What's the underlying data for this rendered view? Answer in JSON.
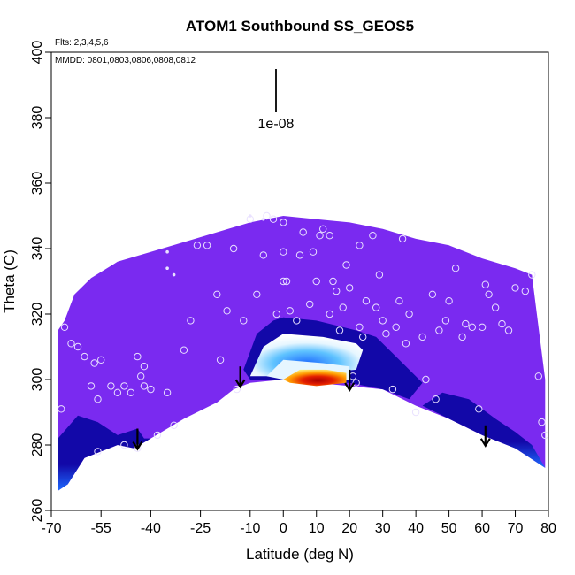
{
  "chart_data": {
    "type": "heatmap",
    "title": "ATOM1 Southbound SS_GEOS5",
    "xlabel": "Latitude (deg N)",
    "ylabel": "Theta (C)",
    "xlim": [
      -70,
      80
    ],
    "ylim": [
      260,
      400
    ],
    "x_ticks": [
      -70,
      -55,
      -40,
      -25,
      -10,
      0,
      10,
      20,
      30,
      40,
      50,
      60,
      70,
      80
    ],
    "y_ticks": [
      260,
      280,
      300,
      320,
      340,
      360,
      380,
      400
    ],
    "flights_note": "Flts: 2,3,4,5,6",
    "dates_note": "MMDD: 0801,0803,0806,0808,0812",
    "scale_bar_label": "1e-08",
    "background_color": "#7A2AF0",
    "colormap": [
      "#1208A8",
      "#1E6BFF",
      "#5FC3FF",
      "#E6F6FF",
      "#FFFFFF",
      "#FFF27A",
      "#FF9A00",
      "#E51F00",
      "#A80000"
    ],
    "domain_boundary": {
      "upper": [
        [
          -68,
          315
        ],
        [
          -66,
          318
        ],
        [
          -63,
          326
        ],
        [
          -58,
          331
        ],
        [
          -50,
          336
        ],
        [
          -40,
          339
        ],
        [
          -30,
          342
        ],
        [
          -20,
          345
        ],
        [
          -10,
          348
        ],
        [
          0,
          350
        ],
        [
          10,
          349
        ],
        [
          20,
          348
        ],
        [
          30,
          346
        ],
        [
          40,
          343
        ],
        [
          50,
          341
        ],
        [
          60,
          337
        ],
        [
          70,
          334
        ],
        [
          75,
          332
        ],
        [
          79,
          300
        ]
      ],
      "lower": [
        [
          -68,
          266
        ],
        [
          -65,
          268
        ],
        [
          -60,
          276
        ],
        [
          -55,
          278
        ],
        [
          -50,
          280
        ],
        [
          -45,
          279
        ],
        [
          -40,
          282
        ],
        [
          -30,
          288
        ],
        [
          -20,
          293
        ],
        [
          -15,
          297
        ],
        [
          -10,
          299
        ],
        [
          0,
          300
        ],
        [
          10,
          299
        ],
        [
          20,
          298
        ],
        [
          30,
          297
        ],
        [
          40,
          292
        ],
        [
          50,
          288
        ],
        [
          60,
          283
        ],
        [
          70,
          279
        ],
        [
          79,
          273
        ]
      ]
    },
    "high_value_core": {
      "outer": [
        [
          -12,
          303
        ],
        [
          -8,
          314
        ],
        [
          -3,
          318
        ],
        [
          0,
          319
        ],
        [
          10,
          318
        ],
        [
          22,
          315
        ],
        [
          28,
          313
        ],
        [
          35,
          306
        ],
        [
          42,
          299
        ],
        [
          38,
          294
        ],
        [
          30,
          297
        ],
        [
          20,
          299
        ],
        [
          10,
          299
        ],
        [
          0,
          300
        ],
        [
          -10,
          300
        ]
      ],
      "mid": [
        [
          -10,
          301
        ],
        [
          -6,
          310
        ],
        [
          0,
          314
        ],
        [
          12,
          313
        ],
        [
          22,
          311
        ],
        [
          24,
          309
        ],
        [
          22,
          303
        ],
        [
          12,
          302
        ],
        [
          0,
          301
        ]
      ],
      "inner": [
        [
          -5,
          301
        ],
        [
          0,
          306
        ],
        [
          12,
          305
        ],
        [
          20,
          304
        ],
        [
          20,
          300
        ],
        [
          10,
          299
        ],
        [
          0,
          300
        ]
      ],
      "hot": [
        [
          0,
          300
        ],
        [
          5,
          303
        ],
        [
          13,
          303
        ],
        [
          19,
          302
        ],
        [
          19,
          299
        ],
        [
          10,
          298
        ],
        [
          2,
          299
        ]
      ]
    },
    "lower_left_lobe": [
      [
        -68,
        266
      ],
      [
        -68,
        282
      ],
      [
        -62,
        289
      ],
      [
        -56,
        287
      ],
      [
        -50,
        283
      ],
      [
        -44,
        285
      ],
      [
        -42,
        282
      ],
      [
        -40,
        282
      ],
      [
        -45,
        279
      ],
      [
        -50,
        280
      ],
      [
        -55,
        278
      ],
      [
        -60,
        276
      ],
      [
        -65,
        268
      ]
    ],
    "lower_right_lobe": [
      [
        42,
        292
      ],
      [
        48,
        296
      ],
      [
        56,
        294
      ],
      [
        64,
        288
      ],
      [
        70,
        284
      ],
      [
        75,
        280
      ],
      [
        79,
        273
      ],
      [
        70,
        279
      ],
      [
        60,
        283
      ],
      [
        50,
        288
      ]
    ],
    "arrows": [
      {
        "lat": -44,
        "theta_start": 285
      },
      {
        "lat": -13,
        "theta_start": 304
      },
      {
        "lat": 20,
        "theta_start": 303
      },
      {
        "lat": 61,
        "theta_start": 286
      }
    ],
    "observations": [
      [
        -67,
        291
      ],
      [
        -66,
        316
      ],
      [
        -64,
        311
      ],
      [
        -62,
        310
      ],
      [
        -60,
        307
      ],
      [
        -58,
        298
      ],
      [
        -57,
        305
      ],
      [
        -56,
        294
      ],
      [
        -55,
        306
      ],
      [
        -52,
        298
      ],
      [
        -50,
        296
      ],
      [
        -48,
        298
      ],
      [
        -46,
        296
      ],
      [
        -44,
        307
      ],
      [
        -43,
        301
      ],
      [
        -42,
        298
      ],
      [
        -42,
        304
      ],
      [
        -40,
        297
      ],
      [
        -44,
        279
      ],
      [
        -48,
        280
      ],
      [
        -56,
        278
      ],
      [
        -38,
        283
      ],
      [
        -35,
        296
      ],
      [
        -33,
        286
      ],
      [
        -30,
        309
      ],
      [
        -28,
        318
      ],
      [
        -26,
        341
      ],
      [
        -23,
        341
      ],
      [
        -20,
        326
      ],
      [
        -19,
        306
      ],
      [
        -17,
        321
      ],
      [
        -15,
        340
      ],
      [
        -14,
        297
      ],
      [
        -12,
        318
      ],
      [
        -10,
        349
      ],
      [
        -8,
        326
      ],
      [
        -6,
        338
      ],
      [
        -5,
        350
      ],
      [
        -3,
        349
      ],
      [
        -2,
        320
      ],
      [
        0,
        330
      ],
      [
        0,
        339
      ],
      [
        0,
        348
      ],
      [
        1,
        330
      ],
      [
        2,
        321
      ],
      [
        4,
        318
      ],
      [
        5,
        338
      ],
      [
        6,
        345
      ],
      [
        8,
        323
      ],
      [
        9,
        339
      ],
      [
        10,
        330
      ],
      [
        11,
        344
      ],
      [
        12,
        346
      ],
      [
        14,
        320
      ],
      [
        14,
        344
      ],
      [
        15,
        330
      ],
      [
        16,
        327
      ],
      [
        17,
        315
      ],
      [
        18,
        322
      ],
      [
        19,
        335
      ],
      [
        20,
        328
      ],
      [
        21,
        301
      ],
      [
        22,
        299
      ],
      [
        23,
        316
      ],
      [
        23,
        341
      ],
      [
        24,
        313
      ],
      [
        25,
        324
      ],
      [
        27,
        344
      ],
      [
        28,
        322
      ],
      [
        29,
        332
      ],
      [
        30,
        318
      ],
      [
        31,
        314
      ],
      [
        33,
        297
      ],
      [
        34,
        316
      ],
      [
        35,
        324
      ],
      [
        36,
        343
      ],
      [
        37,
        311
      ],
      [
        38,
        320
      ],
      [
        40,
        290
      ],
      [
        42,
        313
      ],
      [
        43,
        300
      ],
      [
        45,
        326
      ],
      [
        46,
        294
      ],
      [
        47,
        315
      ],
      [
        49,
        318
      ],
      [
        50,
        324
      ],
      [
        52,
        334
      ],
      [
        54,
        313
      ],
      [
        55,
        317
      ],
      [
        57,
        316
      ],
      [
        59,
        291
      ],
      [
        60,
        316
      ],
      [
        61,
        329
      ],
      [
        62,
        326
      ],
      [
        64,
        322
      ],
      [
        66,
        317
      ],
      [
        68,
        315
      ],
      [
        70,
        328
      ],
      [
        73,
        327
      ],
      [
        75,
        332
      ],
      [
        77,
        301
      ],
      [
        78,
        287
      ],
      [
        79,
        283
      ]
    ],
    "single_markers": [
      [
        -10,
        350
      ],
      [
        -6,
        349
      ],
      [
        -35,
        339
      ],
      [
        -35,
        334
      ],
      [
        -33,
        332
      ]
    ]
  }
}
